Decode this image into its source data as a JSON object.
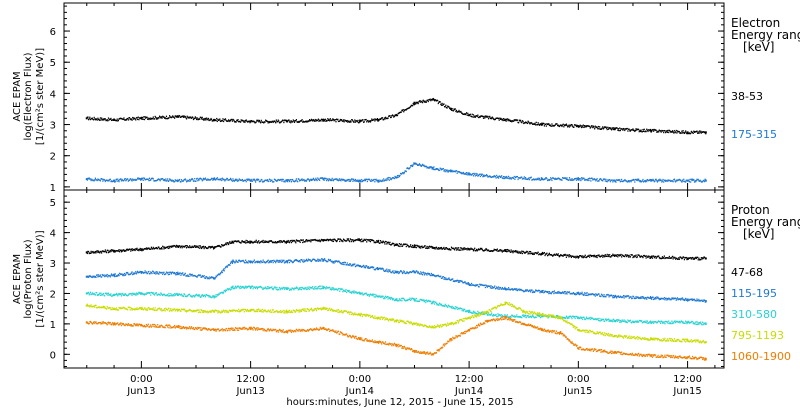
{
  "xaxis": {
    "title": "hours:minutes, June 12, 2015 - June 15, 2015",
    "range_hours": [
      -8.5,
      64
    ],
    "major_ticks": [
      {
        "hour": 0,
        "time": "0:00",
        "day": "Jun13"
      },
      {
        "hour": 12,
        "time": "12:00",
        "day": "Jun13"
      },
      {
        "hour": 24,
        "time": "0:00",
        "day": "Jun14"
      },
      {
        "hour": 36,
        "time": "12:00",
        "day": "Jun14"
      },
      {
        "hour": 48,
        "time": "0:00",
        "day": "Jun15"
      },
      {
        "hour": 60,
        "time": "12:00",
        "day": "Jun15"
      }
    ]
  },
  "chart_data": [
    {
      "type": "scatter",
      "panel": "electron",
      "ylabel_lines": [
        "ACE EPAM",
        "log(Electron Flux)",
        "[1/(cm²s ster MeV)]"
      ],
      "ylim": [
        0.9,
        6.9
      ],
      "yticks": [
        1,
        2,
        3,
        4,
        5,
        6
      ],
      "legend": {
        "title_lines": [
          "Electron",
          "Energy range",
          "[keV]"
        ]
      },
      "series": [
        {
          "name": "38-53",
          "color": "#000000",
          "x": [
            -6,
            -3,
            0,
            4,
            8,
            12,
            16,
            20,
            24,
            26,
            28,
            30,
            32,
            34,
            36,
            40,
            44,
            48,
            52,
            56,
            60,
            62
          ],
          "y": [
            3.2,
            3.15,
            3.2,
            3.25,
            3.15,
            3.1,
            3.1,
            3.15,
            3.1,
            3.15,
            3.3,
            3.7,
            3.8,
            3.5,
            3.3,
            3.15,
            3.0,
            2.95,
            2.85,
            2.8,
            2.75,
            2.75
          ]
        },
        {
          "name": "175-315",
          "color": "#1e78d2",
          "x": [
            -6,
            -3,
            0,
            4,
            8,
            12,
            16,
            20,
            24,
            26,
            28,
            30,
            32,
            34,
            36,
            40,
            44,
            48,
            52,
            56,
            60,
            62
          ],
          "y": [
            1.25,
            1.2,
            1.25,
            1.2,
            1.25,
            1.2,
            1.2,
            1.25,
            1.2,
            1.2,
            1.3,
            1.75,
            1.6,
            1.5,
            1.4,
            1.3,
            1.25,
            1.25,
            1.2,
            1.2,
            1.2,
            1.2
          ]
        }
      ]
    },
    {
      "type": "scatter",
      "panel": "proton",
      "ylabel_lines": [
        "ACE EPAM",
        "log(Proton Flux)",
        "[1/(cm²s ster MeV)]"
      ],
      "ylim": [
        -0.45,
        5.4
      ],
      "yticks": [
        0,
        1,
        2,
        3,
        4,
        5
      ],
      "legend": {
        "title_lines": [
          "Proton",
          "Energy range",
          "[keV]"
        ]
      },
      "series": [
        {
          "name": "47-68",
          "color": "#000000",
          "x": [
            -6,
            -3,
            0,
            4,
            8,
            10,
            12,
            16,
            20,
            24,
            26,
            28,
            30,
            32,
            36,
            40,
            44,
            48,
            52,
            56,
            60,
            62
          ],
          "y": [
            3.35,
            3.4,
            3.45,
            3.55,
            3.5,
            3.7,
            3.7,
            3.7,
            3.75,
            3.75,
            3.7,
            3.6,
            3.55,
            3.5,
            3.45,
            3.4,
            3.3,
            3.2,
            3.25,
            3.2,
            3.15,
            3.15
          ]
        },
        {
          "name": "115-195",
          "color": "#1e78d2",
          "x": [
            -6,
            -3,
            0,
            4,
            8,
            10,
            12,
            16,
            20,
            24,
            26,
            28,
            30,
            32,
            36,
            40,
            44,
            48,
            52,
            56,
            60,
            62
          ],
          "y": [
            2.55,
            2.6,
            2.7,
            2.65,
            2.5,
            3.05,
            3.05,
            3.05,
            3.1,
            2.9,
            2.8,
            2.7,
            2.7,
            2.6,
            2.3,
            2.15,
            2.05,
            2.0,
            1.9,
            1.85,
            1.8,
            1.75
          ]
        },
        {
          "name": "310-580",
          "color": "#28d2d2",
          "x": [
            -6,
            -3,
            0,
            4,
            8,
            10,
            12,
            16,
            20,
            24,
            26,
            28,
            30,
            32,
            36,
            40,
            44,
            48,
            52,
            56,
            60,
            62
          ],
          "y": [
            2.0,
            1.95,
            2.0,
            1.95,
            1.9,
            2.2,
            2.2,
            2.15,
            2.2,
            2.0,
            1.9,
            1.8,
            1.8,
            1.7,
            1.4,
            1.25,
            1.25,
            1.2,
            1.1,
            1.05,
            1.05,
            1.0
          ]
        },
        {
          "name": "795-1193",
          "color": "#c8dc00",
          "x": [
            -6,
            -3,
            0,
            4,
            8,
            12,
            16,
            20,
            24,
            26,
            28,
            30,
            32,
            34,
            36,
            38,
            40,
            42,
            44,
            46,
            48,
            52,
            56,
            60,
            62
          ],
          "y": [
            1.6,
            1.5,
            1.5,
            1.45,
            1.4,
            1.45,
            1.4,
            1.5,
            1.3,
            1.2,
            1.1,
            1.0,
            0.9,
            1.0,
            1.2,
            1.4,
            1.7,
            1.4,
            1.3,
            1.2,
            0.8,
            0.6,
            0.5,
            0.45,
            0.4
          ]
        },
        {
          "name": "1060-1900",
          "color": "#ee7d00",
          "x": [
            -6,
            -3,
            0,
            4,
            8,
            12,
            16,
            20,
            24,
            26,
            28,
            30,
            32,
            34,
            36,
            38,
            40,
            42,
            44,
            46,
            48,
            52,
            56,
            60,
            62
          ],
          "y": [
            1.05,
            1.0,
            0.95,
            0.9,
            0.8,
            0.85,
            0.75,
            0.85,
            0.5,
            0.4,
            0.3,
            0.1,
            0.0,
            0.5,
            0.8,
            1.1,
            1.2,
            1.0,
            0.8,
            0.7,
            0.2,
            0.05,
            -0.05,
            -0.1,
            -0.15
          ]
        }
      ]
    }
  ]
}
